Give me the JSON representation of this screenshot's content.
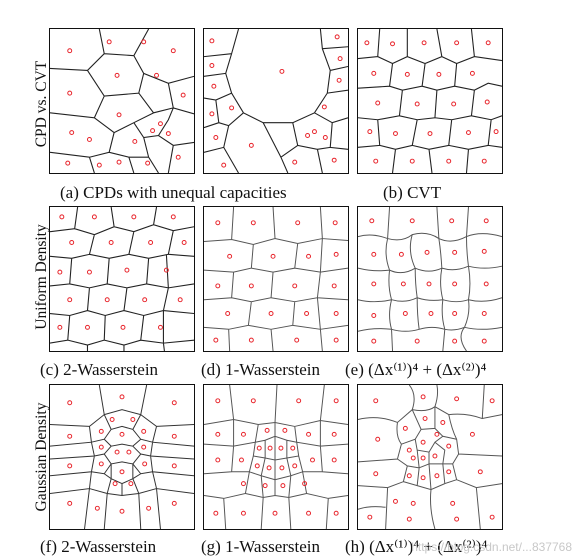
{
  "row_labels": [
    "CPD vs. CVT",
    "Uniform Density",
    "Gaussian Density"
  ],
  "captions": {
    "a": "(a) CPDs with unequal capacities",
    "b": "(b) CVT",
    "c": "(c) 2-Wasserstein",
    "d": "(d) 1-Wasserstein",
    "e": "(e) (Δx⁽¹⁾)⁴ + (Δx⁽²⁾)⁴",
    "f": "(f) 2-Wasserstein",
    "g": "(g) 1-Wasserstein",
    "h": "(h) (Δx⁽¹⁾)⁴ + (Δx⁽²⁾)⁴"
  },
  "watermark": "https://blog.csdn.net/...837768",
  "colors": {
    "site": "#e8232a",
    "edge": "#222222",
    "edge_soft": "#555555"
  }
}
